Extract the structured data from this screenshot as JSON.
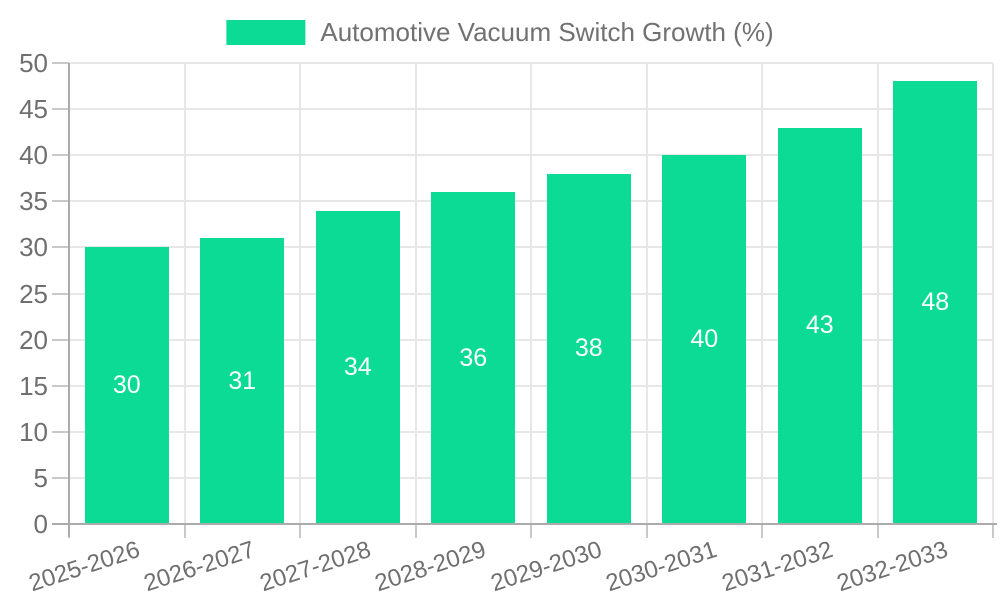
{
  "legend": {
    "label": "Automotive Vacuum Switch Growth (%)"
  },
  "chart_data": {
    "type": "bar",
    "title": "Automotive Vacuum Switch Growth (%)",
    "categories": [
      "2025-2026",
      "2026-2027",
      "2027-2028",
      "2028-2029",
      "2029-2030",
      "2030-2031",
      "2031-2032",
      "2032-2033"
    ],
    "series": [
      {
        "name": "Automotive Vacuum Switch Growth (%)",
        "values": [
          30,
          31,
          34,
          36,
          38,
          40,
          43,
          48
        ]
      }
    ],
    "xlabel": "",
    "ylabel": "",
    "ylim": [
      0,
      50
    ],
    "ytick_step": 5,
    "ytick_labels": [
      "0",
      "5",
      "10",
      "15",
      "20",
      "25",
      "30",
      "35",
      "40",
      "45",
      "50"
    ],
    "grid": "horizontal and vertical",
    "legend_position": "top-center",
    "bar_labels_shown_inside_bars": true,
    "colors": {
      "bar": "#0bdb95",
      "bar_label_text": "#ffffff",
      "axis_text": "#6f6f6f",
      "legend_text": "#717171",
      "gridline": "#e7e7e7",
      "axis_line": "#ababab",
      "tick_line": "#c9c9c9",
      "background": "#ffffff"
    }
  }
}
